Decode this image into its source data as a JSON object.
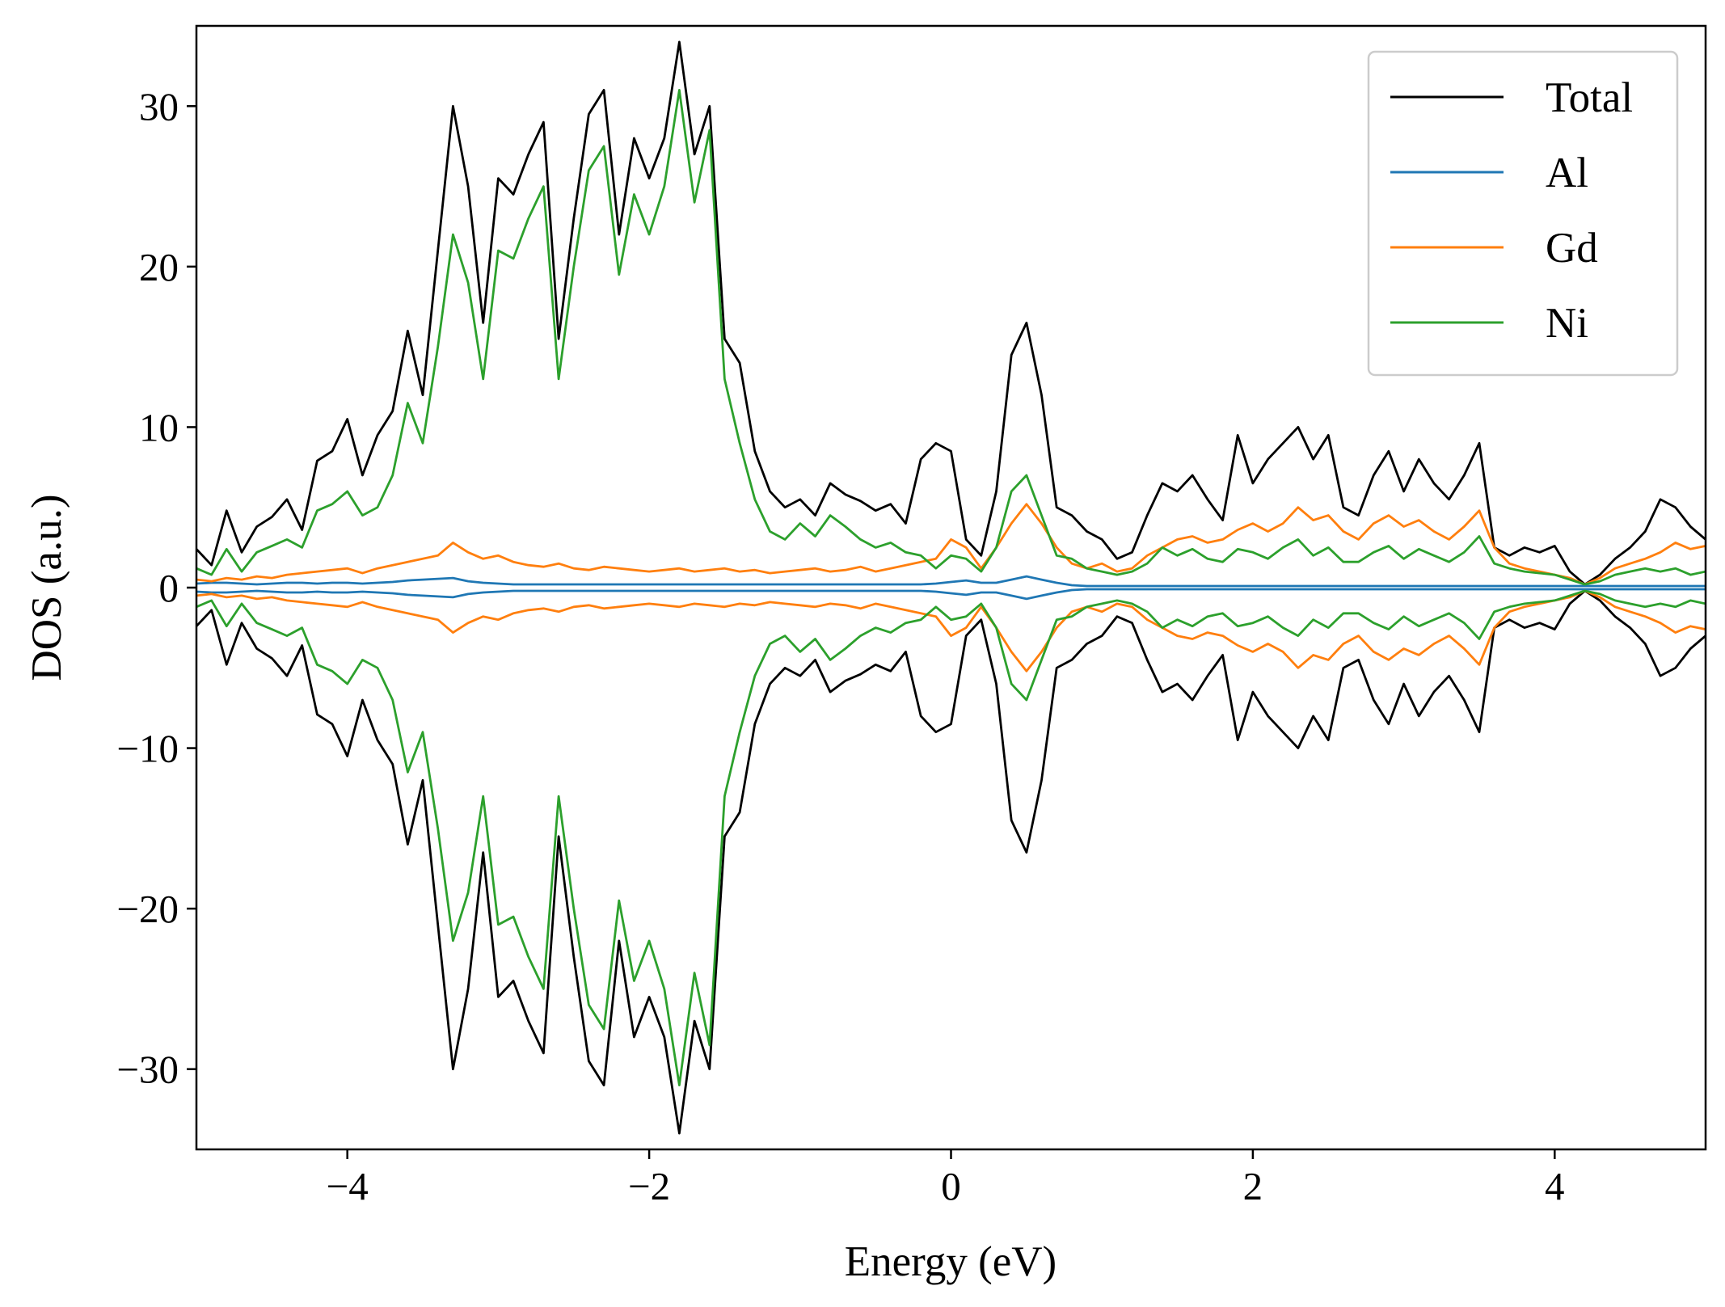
{
  "chart_data": {
    "type": "line",
    "title": "",
    "xlabel": "Energy (eV)",
    "ylabel": "DOS (a.u.)",
    "xlim": [
      -5,
      5
    ],
    "ylim": [
      -35,
      35
    ],
    "xticks": [
      -4,
      -2,
      0,
      2,
      4
    ],
    "xtick_labels": [
      "−4",
      "−2",
      "0",
      "2",
      "4"
    ],
    "yticks": [
      -30,
      -20,
      -10,
      0,
      10,
      20,
      30
    ],
    "ytick_labels": [
      "−30",
      "−20",
      "−10",
      "0",
      "10",
      "20",
      "30"
    ],
    "grid": false,
    "legend_position": "upper-right",
    "spin_mirror": true,
    "x": [
      -5.0,
      -4.9,
      -4.8,
      -4.7,
      -4.6,
      -4.5,
      -4.4,
      -4.3,
      -4.2,
      -4.1,
      -4.0,
      -3.9,
      -3.8,
      -3.7,
      -3.6,
      -3.5,
      -3.4,
      -3.3,
      -3.2,
      -3.1,
      -3.0,
      -2.9,
      -2.8,
      -2.7,
      -2.6,
      -2.5,
      -2.4,
      -2.3,
      -2.2,
      -2.1,
      -2.0,
      -1.9,
      -1.8,
      -1.7,
      -1.6,
      -1.5,
      -1.4,
      -1.3,
      -1.2,
      -1.1,
      -1.0,
      -0.9,
      -0.8,
      -0.7,
      -0.6,
      -0.5,
      -0.4,
      -0.3,
      -0.2,
      -0.1,
      0.0,
      0.1,
      0.2,
      0.3,
      0.4,
      0.5,
      0.6,
      0.7,
      0.8,
      0.9,
      1.0,
      1.1,
      1.2,
      1.3,
      1.4,
      1.5,
      1.6,
      1.7,
      1.8,
      1.9,
      2.0,
      2.1,
      2.2,
      2.3,
      2.4,
      2.5,
      2.6,
      2.7,
      2.8,
      2.9,
      3.0,
      3.1,
      3.2,
      3.3,
      3.4,
      3.5,
      3.6,
      3.7,
      3.8,
      3.9,
      4.0,
      4.1,
      4.2,
      4.3,
      4.4,
      4.5,
      4.6,
      4.7,
      4.8,
      4.9,
      5.0
    ],
    "series": [
      {
        "name": "Total",
        "color": "#000000",
        "values": [
          2.4,
          1.4,
          4.8,
          2.2,
          3.8,
          4.4,
          5.5,
          3.6,
          7.9,
          8.5,
          10.5,
          7.0,
          9.5,
          11.0,
          16.0,
          12.0,
          21.0,
          30.0,
          25.0,
          16.5,
          25.5,
          24.5,
          27.0,
          29.0,
          15.5,
          23.0,
          29.5,
          31.0,
          22.0,
          28.0,
          25.5,
          28.0,
          34.0,
          27.0,
          30.0,
          15.5,
          14.0,
          8.5,
          6.0,
          5.0,
          5.5,
          4.5,
          6.5,
          5.8,
          5.4,
          4.8,
          5.2,
          4.0,
          8.0,
          9.0,
          8.5,
          3.0,
          2.0,
          6.0,
          14.5,
          16.5,
          12.0,
          5.0,
          4.5,
          3.5,
          3.0,
          1.8,
          2.2,
          4.5,
          6.5,
          6.0,
          7.0,
          5.5,
          4.2,
          9.5,
          6.5,
          8.0,
          9.0,
          10.0,
          8.0,
          9.5,
          5.0,
          4.5,
          7.0,
          8.5,
          6.0,
          8.0,
          6.5,
          5.5,
          7.0,
          9.0,
          2.5,
          2.0,
          2.5,
          2.2,
          2.6,
          1.0,
          0.2,
          0.8,
          1.8,
          2.5,
          3.5,
          5.5,
          5.0,
          3.8,
          3.0
        ]
      },
      {
        "name": "Al",
        "color": "#1f77b4",
        "values": [
          0.25,
          0.3,
          0.3,
          0.25,
          0.2,
          0.25,
          0.3,
          0.3,
          0.25,
          0.3,
          0.3,
          0.25,
          0.3,
          0.35,
          0.45,
          0.5,
          0.55,
          0.6,
          0.4,
          0.3,
          0.25,
          0.2,
          0.2,
          0.2,
          0.2,
          0.2,
          0.2,
          0.2,
          0.2,
          0.2,
          0.2,
          0.2,
          0.2,
          0.2,
          0.2,
          0.2,
          0.2,
          0.2,
          0.2,
          0.2,
          0.2,
          0.2,
          0.2,
          0.2,
          0.2,
          0.2,
          0.2,
          0.2,
          0.2,
          0.25,
          0.35,
          0.45,
          0.3,
          0.3,
          0.5,
          0.7,
          0.5,
          0.3,
          0.15,
          0.1,
          0.1,
          0.1,
          0.1,
          0.1,
          0.1,
          0.1,
          0.1,
          0.1,
          0.1,
          0.1,
          0.1,
          0.1,
          0.1,
          0.1,
          0.1,
          0.1,
          0.1,
          0.1,
          0.1,
          0.1,
          0.1,
          0.1,
          0.1,
          0.1,
          0.1,
          0.1,
          0.1,
          0.1,
          0.1,
          0.1,
          0.1,
          0.1,
          0.1,
          0.1,
          0.1,
          0.1,
          0.1,
          0.1,
          0.1,
          0.1,
          0.1
        ]
      },
      {
        "name": "Gd",
        "color": "#ff7f0e",
        "values": [
          0.5,
          0.4,
          0.6,
          0.5,
          0.7,
          0.6,
          0.8,
          0.9,
          1.0,
          1.1,
          1.2,
          0.9,
          1.2,
          1.4,
          1.6,
          1.8,
          2.0,
          2.8,
          2.2,
          1.8,
          2.0,
          1.6,
          1.4,
          1.3,
          1.5,
          1.2,
          1.1,
          1.3,
          1.2,
          1.1,
          1.0,
          1.1,
          1.2,
          1.0,
          1.1,
          1.2,
          1.0,
          1.1,
          0.9,
          1.0,
          1.1,
          1.2,
          1.0,
          1.1,
          1.3,
          1.0,
          1.2,
          1.4,
          1.6,
          1.8,
          3.0,
          2.5,
          1.2,
          2.5,
          4.0,
          5.2,
          4.0,
          2.5,
          1.5,
          1.2,
          1.5,
          1.0,
          1.2,
          2.0,
          2.5,
          3.0,
          3.2,
          2.8,
          3.0,
          3.6,
          4.0,
          3.5,
          4.0,
          5.0,
          4.2,
          4.5,
          3.5,
          3.0,
          4.0,
          4.5,
          3.8,
          4.2,
          3.5,
          3.0,
          3.8,
          4.8,
          2.5,
          1.5,
          1.2,
          1.0,
          0.8,
          0.6,
          0.2,
          0.6,
          1.2,
          1.5,
          1.8,
          2.2,
          2.8,
          2.4,
          2.6
        ]
      },
      {
        "name": "Ni",
        "color": "#2ca02c",
        "values": [
          1.2,
          0.8,
          2.4,
          1.0,
          2.2,
          2.6,
          3.0,
          2.5,
          4.8,
          5.2,
          6.0,
          4.5,
          5.0,
          7.0,
          11.5,
          9.0,
          15.0,
          22.0,
          19.0,
          13.0,
          21.0,
          20.5,
          23.0,
          25.0,
          13.0,
          20.0,
          26.0,
          27.5,
          19.5,
          24.5,
          22.0,
          25.0,
          31.0,
          24.0,
          28.5,
          13.0,
          9.0,
          5.5,
          3.5,
          3.0,
          4.0,
          3.2,
          4.5,
          3.8,
          3.0,
          2.5,
          2.8,
          2.2,
          2.0,
          1.2,
          2.0,
          1.8,
          1.0,
          2.5,
          6.0,
          7.0,
          4.5,
          2.0,
          1.8,
          1.2,
          1.0,
          0.8,
          1.0,
          1.5,
          2.5,
          2.0,
          2.4,
          1.8,
          1.6,
          2.4,
          2.2,
          1.8,
          2.5,
          3.0,
          2.0,
          2.5,
          1.6,
          1.6,
          2.2,
          2.6,
          1.8,
          2.4,
          2.0,
          1.6,
          2.2,
          3.2,
          1.5,
          1.2,
          1.0,
          0.9,
          0.8,
          0.5,
          0.2,
          0.4,
          0.8,
          1.0,
          1.2,
          1.0,
          1.2,
          0.8,
          1.0
        ]
      }
    ]
  }
}
